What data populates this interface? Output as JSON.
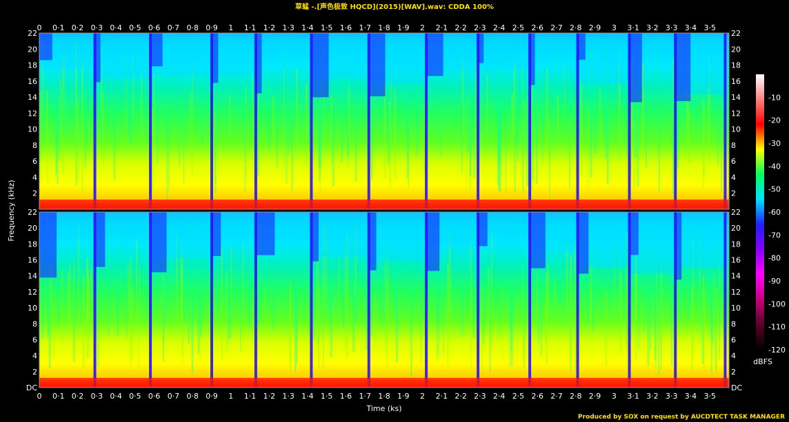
{
  "header": {
    "title": "草蜢 -.[声色极致 HQCD](2015)[WAV].wav: CDDA 100%"
  },
  "footer": {
    "credit": "Produced by SOX on request by AUCDTECT TASK MANAGER"
  },
  "chart_data": {
    "type": "heatmap",
    "title": "草蜢 -.[声色极致 HQCD](2015)[WAV].wav: CDDA 100%",
    "xlabel": "Time (ks)",
    "ylabel": "Frequency (kHz)",
    "xlim": [
      0,
      3.6
    ],
    "ylim": [
      0,
      22
    ],
    "channels": 2,
    "x_ticks": [
      "0",
      "0·1",
      "0·2",
      "0·3",
      "0·4",
      "0·5",
      "0·6",
      "0·7",
      "0·8",
      "0·9",
      "1",
      "1·1",
      "1·2",
      "1·3",
      "1·4",
      "1·5",
      "1·6",
      "1·7",
      "1·8",
      "1·9",
      "2",
      "2·1",
      "2·2",
      "2·3",
      "2·4",
      "2·5",
      "2·6",
      "2·7",
      "2·8",
      "2·9",
      "3",
      "3·1",
      "3·2",
      "3·3",
      "3·4",
      "3·5"
    ],
    "y_ticks": [
      "DC",
      "2",
      "4",
      "6",
      "8",
      "10",
      "12",
      "14",
      "16",
      "18",
      "20",
      "22"
    ],
    "colorbar": {
      "label": "dBFS",
      "ticks": [
        "-10",
        "-20",
        "-30",
        "-40",
        "-50",
        "-60",
        "-70",
        "-80",
        "-90",
        "-100",
        "-110",
        "-120"
      ],
      "range": [
        -120,
        0
      ],
      "colors": [
        "#000000",
        "#5a0028",
        "#c8007a",
        "#ff00ff",
        "#8a00ff",
        "#2020ff",
        "#00e0ff",
        "#00ff60",
        "#ffff00",
        "#ff0000",
        "#ff8080",
        "#ffffff"
      ]
    },
    "track_boundaries_ks": [
      0.29,
      0.58,
      0.9,
      1.13,
      1.42,
      1.72,
      2.02,
      2.29,
      2.56,
      2.81,
      3.08,
      3.32,
      3.58
    ]
  }
}
